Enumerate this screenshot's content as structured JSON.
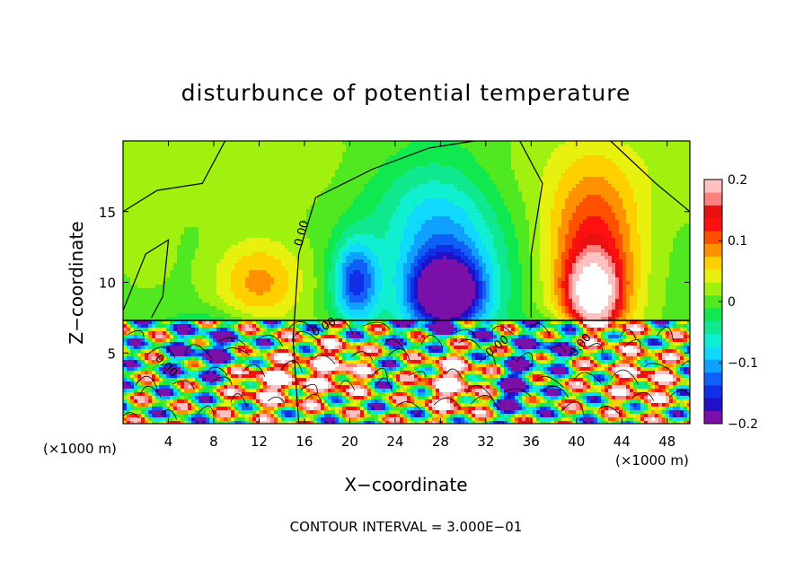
{
  "chart_data": {
    "type": "heatmap",
    "title": "disturbunce of potential temperature",
    "xlabel": "X−coordinate",
    "ylabel": "Z−coordinate",
    "x_unit_left": "(×1000 m)",
    "x_unit_right": "(×1000 m)",
    "x_ticks": [
      4,
      8,
      12,
      16,
      20,
      24,
      28,
      32,
      36,
      40,
      44,
      48
    ],
    "y_ticks": [
      5,
      10,
      15
    ],
    "xlim": [
      0,
      50
    ],
    "ylim": [
      0,
      20
    ],
    "contour_label": "0.00",
    "footer": "CONTOUR INTERVAL = 3.000E−01",
    "colorbar": {
      "ticks": [
        {
          "value": 0.2,
          "label": "0.2"
        },
        {
          "value": 0.1,
          "label": "0.1"
        },
        {
          "value": 0.0,
          "label": "0"
        },
        {
          "value": -0.1,
          "label": "−0.1"
        },
        {
          "value": -0.2,
          "label": "−0.2"
        }
      ],
      "range": [
        -0.2,
        0.2
      ],
      "colors": [
        "#7a10a8",
        "#2010c8",
        "#1030e8",
        "#1060f8",
        "#10a0ff",
        "#10d8ff",
        "#10f0d0",
        "#10e890",
        "#10e850",
        "#50e820",
        "#a0f010",
        "#e8f010",
        "#ffd000",
        "#ff9000",
        "#ff5000",
        "#ff1010",
        "#e81010",
        "#ff8080",
        "#ffc0c0"
      ]
    },
    "field_blobs": [
      {
        "x": 28.5,
        "z": 10.8,
        "rx": 5.0,
        "rz": 7.0,
        "v": -0.12
      },
      {
        "x": 28.5,
        "z": 9.3,
        "rx": 2.8,
        "rz": 2.2,
        "v": -0.2
      },
      {
        "x": 20.5,
        "z": 10.0,
        "rx": 2.0,
        "rz": 3.0,
        "v": -0.14
      },
      {
        "x": 41.5,
        "z": 11.2,
        "rx": 4.0,
        "rz": 6.5,
        "v": 0.14
      },
      {
        "x": 41.5,
        "z": 9.3,
        "rx": 2.0,
        "rz": 2.2,
        "v": 0.2
      },
      {
        "x": 24.5,
        "z": 16.0,
        "rx": 5.5,
        "rz": 4.0,
        "v": -0.03
      },
      {
        "x": 12.0,
        "z": 10.0,
        "rx": 4.0,
        "rz": 3.0,
        "v": 0.08
      },
      {
        "x": 2.0,
        "z": 12.0,
        "rx": 2.5,
        "rz": 3.0,
        "v": 0.02
      },
      {
        "x": 8.0,
        "z": 5.0,
        "rx": 4.0,
        "rz": 2.0,
        "v": -0.15
      },
      {
        "x": 19.0,
        "z": 4.0,
        "rx": 2.5,
        "rz": 2.0,
        "v": 0.2
      },
      {
        "x": 29.0,
        "z": 3.0,
        "rx": 3.0,
        "rz": 2.5,
        "v": 0.25
      },
      {
        "x": 38.0,
        "z": 5.5,
        "rx": 2.5,
        "rz": 1.5,
        "v": -0.15
      },
      {
        "x": 46.0,
        "z": 3.0,
        "rx": 3.0,
        "rz": 2.0,
        "v": 0.15
      },
      {
        "x": 13.0,
        "z": 3.0,
        "rx": 3.5,
        "rz": 2.0,
        "v": 0.22
      },
      {
        "x": 34.5,
        "z": 2.5,
        "rx": 2.0,
        "rz": 2.0,
        "v": -0.18
      }
    ]
  }
}
